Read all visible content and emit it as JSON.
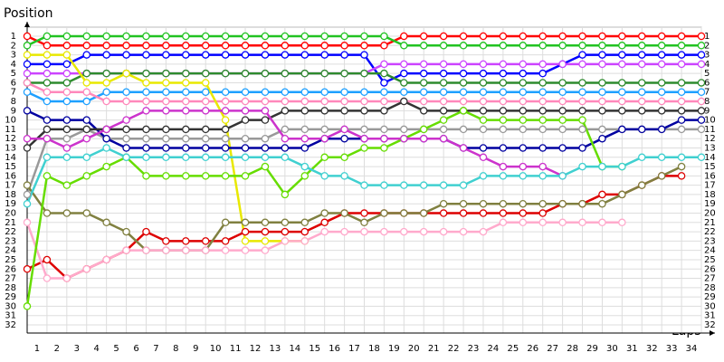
{
  "chart_data": {
    "type": "line",
    "title": "Position",
    "x_label": "Laps",
    "x": [
      0,
      1,
      2,
      3,
      4,
      5,
      6,
      7,
      8,
      9,
      10,
      11,
      12,
      13,
      14,
      15,
      16,
      17,
      18,
      19,
      20,
      21,
      22,
      23,
      24,
      25,
      26,
      27,
      28,
      29,
      30,
      31,
      32,
      33,
      34
    ],
    "xlim": [
      0,
      34
    ],
    "xticks": [
      1,
      2,
      3,
      4,
      5,
      6,
      7,
      8,
      9,
      10,
      11,
      12,
      13,
      14,
      15,
      16,
      17,
      18,
      19,
      20,
      21,
      22,
      23,
      24,
      25,
      26,
      27,
      28,
      29,
      30,
      31,
      32,
      33,
      34
    ],
    "ylim": [
      1,
      32
    ],
    "yticks": [
      1,
      2,
      3,
      4,
      5,
      6,
      7,
      8,
      9,
      10,
      11,
      12,
      13,
      14,
      15,
      16,
      17,
      18,
      19,
      20,
      21,
      22,
      23,
      24,
      25,
      26,
      27,
      28,
      29,
      30,
      31,
      32
    ],
    "inverted_y": true,
    "grid": true,
    "series": [
      {
        "color": "#ff0000",
        "values": [
          1,
          2,
          2,
          2,
          2,
          2,
          2,
          2,
          2,
          2,
          2,
          2,
          2,
          2,
          2,
          2,
          2,
          2,
          2,
          1,
          1,
          1,
          1,
          1,
          1,
          1,
          1,
          1,
          1,
          1,
          1,
          1,
          1,
          1,
          1
        ]
      },
      {
        "color": "#22c322",
        "values": [
          2,
          1,
          1,
          1,
          1,
          1,
          1,
          1,
          1,
          1,
          1,
          1,
          1,
          1,
          1,
          1,
          1,
          1,
          1,
          2,
          2,
          2,
          2,
          2,
          2,
          2,
          2,
          2,
          2,
          2,
          2,
          2,
          2,
          2,
          2
        ]
      },
      {
        "color": "#0000ff",
        "values": [
          4,
          4,
          4,
          3,
          3,
          3,
          3,
          3,
          3,
          3,
          3,
          3,
          3,
          3,
          3,
          3,
          3,
          3,
          6,
          5,
          5,
          5,
          5,
          5,
          5,
          5,
          5,
          4,
          3,
          3,
          3,
          3,
          3,
          3,
          3
        ]
      },
      {
        "color": "#cc44ff",
        "values": [
          5,
          5,
          5,
          5,
          5,
          5,
          5,
          5,
          5,
          5,
          5,
          5,
          5,
          5,
          5,
          5,
          5,
          5,
          4,
          4,
          4,
          4,
          4,
          4,
          4,
          4,
          4,
          4,
          4,
          4,
          4,
          4,
          4,
          4,
          4
        ]
      },
      {
        "color": "#2e8b2e",
        "values": [
          6,
          6,
          6,
          5,
          5,
          5,
          5,
          5,
          5,
          5,
          5,
          5,
          5,
          5,
          5,
          5,
          5,
          5,
          5,
          6,
          6,
          6,
          6,
          6,
          6,
          6,
          6,
          6,
          6,
          6,
          6,
          6,
          6,
          6,
          6
        ]
      },
      {
        "color": "#1ea0ff",
        "values": [
          7,
          8,
          8,
          8,
          7,
          7,
          7,
          7,
          7,
          7,
          7,
          7,
          7,
          7,
          7,
          7,
          7,
          7,
          7,
          7,
          7,
          7,
          7,
          7,
          7,
          7,
          7,
          7,
          7,
          7,
          7,
          7,
          7,
          7,
          7
        ]
      },
      {
        "color": "#ff88bb",
        "values": [
          6,
          7,
          7,
          7,
          8,
          8,
          8,
          8,
          8,
          8,
          8,
          8,
          8,
          8,
          8,
          8,
          8,
          8,
          8,
          8,
          8,
          8,
          8,
          8,
          8,
          8,
          8,
          8,
          8,
          8,
          8,
          8,
          8,
          8,
          8
        ]
      },
      {
        "color": "#e8e800",
        "values": [
          3,
          3,
          3,
          6,
          6,
          5,
          6,
          6,
          6,
          6,
          10,
          23,
          23,
          23,
          23,
          null,
          null,
          null,
          null,
          null,
          null,
          null,
          null,
          null,
          null,
          null,
          null,
          null,
          null,
          null,
          null,
          null,
          null,
          null,
          null
        ]
      },
      {
        "color": "#999999",
        "values": [
          18,
          12,
          12,
          11,
          12,
          12,
          12,
          12,
          12,
          12,
          12,
          12,
          12,
          11,
          11,
          11,
          11,
          11,
          11,
          11,
          11,
          11,
          11,
          11,
          11,
          11,
          11,
          11,
          11,
          11,
          11,
          11,
          11,
          11,
          11
        ]
      },
      {
        "color": "#dd0000",
        "values": [
          26,
          25,
          27,
          26,
          25,
          24,
          22,
          23,
          23,
          23,
          23,
          22,
          22,
          22,
          22,
          21,
          20,
          20,
          20,
          20,
          20,
          20,
          20,
          20,
          20,
          20,
          20,
          19,
          19,
          18,
          18,
          17,
          16,
          16,
          null
        ]
      },
      {
        "color": "#808040",
        "values": [
          17,
          20,
          20,
          20,
          21,
          22,
          24,
          24,
          24,
          24,
          21,
          21,
          21,
          21,
          21,
          20,
          20,
          21,
          20,
          20,
          20,
          19,
          19,
          19,
          19,
          19,
          19,
          19,
          19,
          19,
          18,
          17,
          16,
          15,
          null
        ]
      },
      {
        "color": "#0000a0",
        "values": [
          9,
          10,
          10,
          10,
          12,
          13,
          13,
          13,
          13,
          13,
          13,
          13,
          13,
          13,
          13,
          12,
          12,
          12,
          12,
          12,
          12,
          12,
          13,
          13,
          13,
          13,
          13,
          13,
          13,
          12,
          11,
          11,
          11,
          10,
          10
        ]
      },
      {
        "color": "#333333",
        "values": [
          13,
          11,
          11,
          11,
          11,
          11,
          11,
          11,
          11,
          11,
          11,
          10,
          10,
          9,
          9,
          9,
          9,
          9,
          9,
          8,
          9,
          9,
          9,
          9,
          9,
          9,
          9,
          9,
          9,
          9,
          9,
          9,
          9,
          9,
          9
        ]
      },
      {
        "color": "#ffaacc",
        "values": [
          21,
          27,
          27,
          26,
          25,
          24,
          24,
          24,
          24,
          24,
          24,
          24,
          24,
          23,
          23,
          22,
          22,
          22,
          22,
          22,
          22,
          22,
          22,
          22,
          21,
          21,
          21,
          21,
          21,
          21,
          21,
          null,
          null,
          null,
          null
        ]
      },
      {
        "color": "#66dd00",
        "values": [
          30,
          16,
          17,
          16,
          15,
          14,
          16,
          16,
          16,
          16,
          16,
          16,
          15,
          18,
          16,
          14,
          14,
          13,
          13,
          12,
          11,
          10,
          9,
          10,
          10,
          10,
          10,
          10,
          10,
          15,
          15,
          null,
          null,
          null,
          null
        ]
      },
      {
        "color": "#cc33cc",
        "values": [
          12,
          12,
          13,
          12,
          11,
          10,
          9,
          9,
          9,
          9,
          9,
          9,
          9,
          12,
          12,
          12,
          11,
          12,
          12,
          12,
          12,
          12,
          13,
          14,
          15,
          15,
          15,
          16,
          null,
          null,
          null,
          null,
          null,
          null,
          null
        ]
      },
      {
        "color": "#40d0d0",
        "values": [
          19,
          14,
          14,
          14,
          13,
          14,
          14,
          14,
          14,
          14,
          14,
          14,
          14,
          14,
          15,
          16,
          16,
          17,
          17,
          17,
          17,
          17,
          17,
          16,
          16,
          16,
          16,
          16,
          15,
          15,
          15,
          14,
          14,
          14,
          14
        ]
      }
    ]
  }
}
